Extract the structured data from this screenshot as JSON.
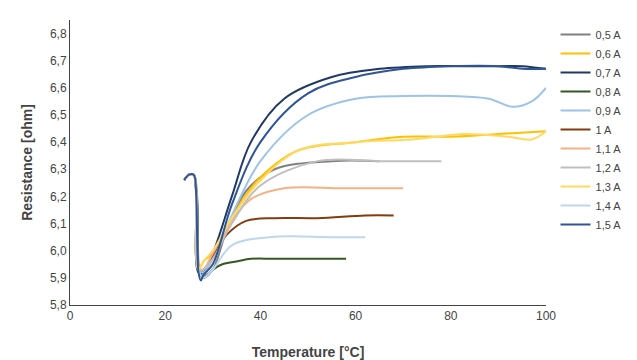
{
  "chart_data": {
    "type": "line",
    "xlabel": "Temperature [°C]",
    "ylabel": "Resistance [ohm]",
    "xlim": [
      0,
      100
    ],
    "ylim": [
      5.8,
      6.85
    ],
    "xticks": [
      0,
      20,
      40,
      60,
      80,
      100
    ],
    "yticks": [
      {
        "value": 5.8,
        "label": "5,8"
      },
      {
        "value": 5.9,
        "label": "5,9"
      },
      {
        "value": 6.0,
        "label": "6,0"
      },
      {
        "value": 6.1,
        "label": "6,1"
      },
      {
        "value": 6.2,
        "label": "6,2"
      },
      {
        "value": 6.3,
        "label": "6,3"
      },
      {
        "value": 6.4,
        "label": "6,4"
      },
      {
        "value": 6.5,
        "label": "6,5"
      },
      {
        "value": 6.6,
        "label": "6,6"
      },
      {
        "value": 6.7,
        "label": "6,7"
      },
      {
        "value": 6.8,
        "label": "6,8"
      }
    ],
    "grid": false,
    "legend": "right",
    "line_style": "smooth",
    "series": [
      {
        "name": "0,5 A",
        "color": "#808080",
        "x": [
          24,
          25,
          26,
          26.8,
          27.5,
          28.5,
          30,
          33,
          37,
          43,
          55,
          65
        ],
        "values": [
          6.26,
          6.28,
          6.28,
          6.18,
          5.91,
          5.91,
          5.93,
          6.08,
          6.22,
          6.3,
          6.33,
          6.33
        ]
      },
      {
        "name": "0,6 A",
        "color": "#FFC000",
        "x": [
          24,
          25,
          26,
          26.5,
          27,
          28,
          30,
          33,
          36,
          40,
          48,
          60,
          70,
          80,
          90,
          100
        ],
        "values": [
          6.26,
          6.28,
          6.28,
          6.22,
          5.93,
          5.96,
          5.99,
          6.08,
          6.18,
          6.27,
          6.37,
          6.4,
          6.42,
          6.42,
          6.43,
          6.44
        ]
      },
      {
        "name": "0,7 A",
        "color": "#1F3864",
        "x": [
          24,
          25,
          26,
          26.5,
          27,
          28,
          30,
          34,
          38,
          45,
          55,
          65,
          75,
          82,
          90,
          95,
          100
        ],
        "values": [
          6.26,
          6.28,
          6.28,
          6.22,
          5.92,
          5.92,
          5.99,
          6.2,
          6.4,
          6.56,
          6.64,
          6.67,
          6.68,
          6.68,
          6.68,
          6.68,
          6.67
        ]
      },
      {
        "name": "0,8 A",
        "color": "#375623",
        "x": [
          24,
          25,
          26,
          26.5,
          27,
          28,
          29,
          30,
          32,
          35,
          38,
          43,
          50,
          58
        ],
        "values": [
          6.26,
          6.28,
          6.28,
          6.22,
          5.93,
          5.9,
          5.91,
          5.93,
          5.95,
          5.96,
          5.97,
          5.97,
          5.97,
          5.97
        ]
      },
      {
        "name": "0,9 A",
        "color": "#9DC3E6",
        "x": [
          24,
          25,
          26,
          26.5,
          27,
          28,
          30,
          34,
          40,
          50,
          60,
          70,
          80,
          88,
          93,
          97,
          100
        ],
        "values": [
          6.26,
          6.28,
          6.28,
          6.22,
          5.93,
          5.92,
          5.97,
          6.13,
          6.33,
          6.5,
          6.56,
          6.57,
          6.57,
          6.56,
          6.53,
          6.55,
          6.6
        ]
      },
      {
        "name": "1 A",
        "color": "#843C0C",
        "x": [
          24,
          25,
          26,
          26.5,
          27,
          28,
          30,
          33,
          37,
          43,
          52,
          62,
          68
        ],
        "values": [
          6.26,
          6.28,
          6.28,
          6.22,
          5.93,
          5.93,
          5.98,
          6.06,
          6.11,
          6.12,
          6.12,
          6.13,
          6.13
        ]
      },
      {
        "name": "1,1 A",
        "color": "#F4B183",
        "x": [
          24,
          25,
          26,
          26.5,
          27,
          28,
          30,
          34,
          38,
          45,
          57,
          65,
          70
        ],
        "values": [
          6.26,
          6.28,
          6.28,
          6.22,
          5.93,
          5.93,
          5.99,
          6.11,
          6.19,
          6.23,
          6.23,
          6.23,
          6.23
        ]
      },
      {
        "name": "1,2 A",
        "color": "#BFBFBF",
        "x": [
          24,
          25,
          26,
          26.5,
          27,
          28,
          30,
          34,
          40,
          52,
          65,
          72,
          78
        ],
        "values": [
          6.26,
          6.28,
          6.28,
          6.22,
          5.93,
          5.93,
          5.97,
          6.1,
          6.24,
          6.33,
          6.33,
          6.33,
          6.33
        ]
      },
      {
        "name": "1,3 A",
        "color": "#FFD966",
        "x": [
          24,
          25,
          26,
          26.5,
          27,
          28,
          30,
          34,
          39,
          48,
          60,
          72,
          83,
          92,
          97,
          100
        ],
        "values": [
          6.26,
          6.28,
          6.28,
          6.22,
          5.93,
          5.96,
          6.0,
          6.12,
          6.24,
          6.37,
          6.4,
          6.41,
          6.43,
          6.42,
          6.41,
          6.44
        ]
      },
      {
        "name": "1,4 A",
        "color": "#BDD7EE",
        "x": [
          24,
          25,
          26,
          26.5,
          27,
          28,
          30,
          34,
          42,
          55,
          62
        ],
        "values": [
          6.26,
          6.28,
          6.28,
          6.22,
          5.93,
          5.9,
          5.93,
          6.02,
          6.05,
          6.05,
          6.05
        ]
      },
      {
        "name": "1,5 A",
        "color": "#2F5597",
        "x": [
          24,
          25,
          26,
          26.5,
          27,
          27.5,
          28,
          30,
          34,
          40,
          50,
          60,
          70,
          80,
          90,
          95,
          100
        ],
        "values": [
          6.26,
          6.28,
          6.28,
          6.21,
          5.92,
          5.89,
          5.91,
          5.95,
          6.17,
          6.4,
          6.58,
          6.64,
          6.67,
          6.68,
          6.68,
          6.67,
          6.67
        ]
      }
    ]
  }
}
